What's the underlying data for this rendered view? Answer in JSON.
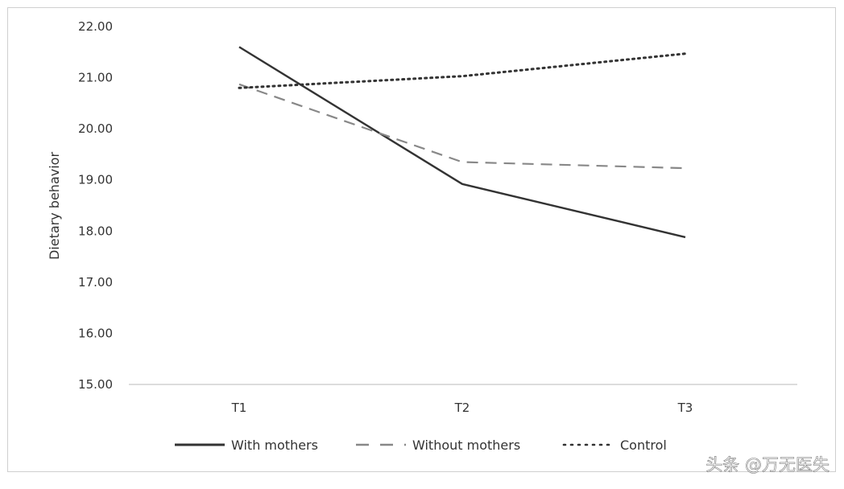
{
  "chart_data": {
    "type": "line",
    "title": "",
    "xlabel": "",
    "ylabel": "Dietary behavior",
    "ylim": [
      15,
      22
    ],
    "yticks": [
      "15.00",
      "16.00",
      "17.00",
      "18.00",
      "19.00",
      "20.00",
      "21.00",
      "22.00"
    ],
    "categories": [
      "T1",
      "T2",
      "T3"
    ],
    "grid": false,
    "legend_position": "bottom",
    "series": [
      {
        "name": "With mothers",
        "values": [
          21.6,
          18.92,
          17.88
        ],
        "style": "solid",
        "color": "#333333"
      },
      {
        "name": "Without mothers",
        "values": [
          20.87,
          19.35,
          19.23
        ],
        "style": "dashed",
        "color": "#888888"
      },
      {
        "name": "Control",
        "values": [
          20.8,
          21.03,
          21.47
        ],
        "style": "dotted",
        "color": "#333333"
      }
    ]
  },
  "watermark": "头条 @万无医失"
}
